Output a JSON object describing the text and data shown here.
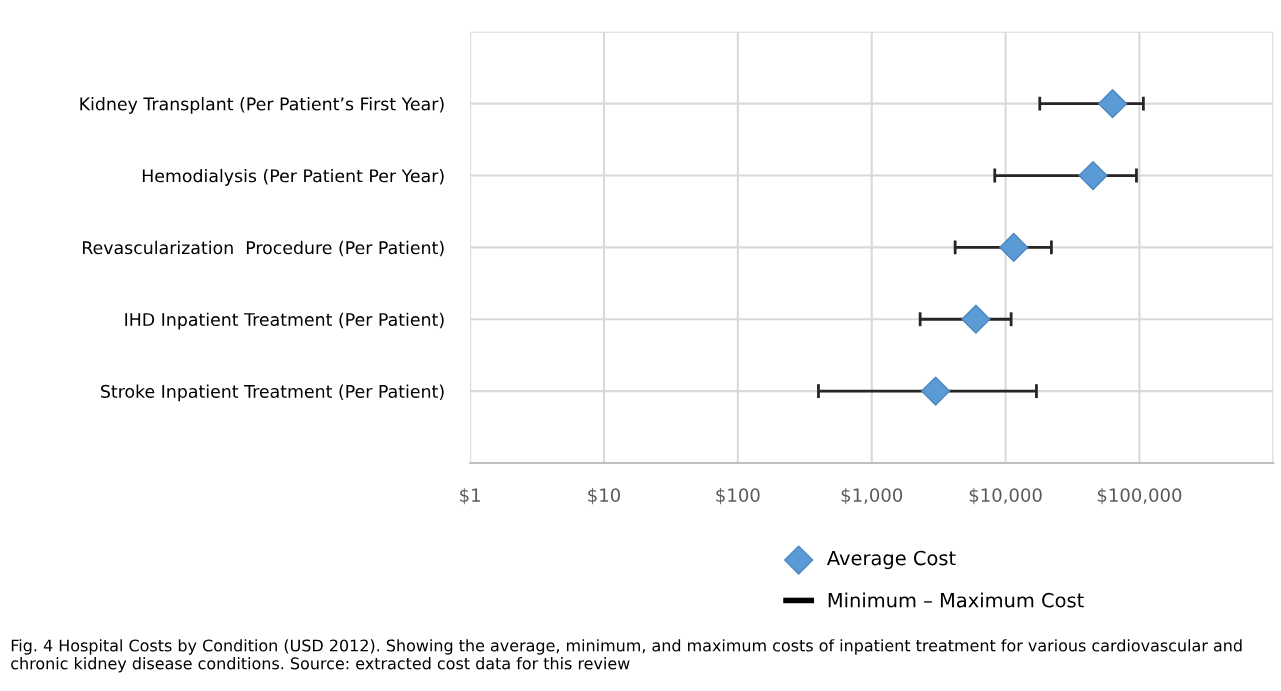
{
  "chart_data": {
    "type": "scatter",
    "orientation": "horizontal",
    "log": "x",
    "categories": [
      "Kidney Transplant (Per Patient’s First Year)",
      "Hemodialysis (Per Patient Per Year)",
      "Revascularization  Procedure (Per Patient)",
      "IHD Inpatient Treatment (Per Patient)",
      "Stroke Inpatient Treatment (Per Patient)"
    ],
    "series": [
      {
        "name": "Average Cost",
        "color": "#5b9bd5",
        "values": [
          63000,
          45000,
          11500,
          6000,
          3000
        ],
        "errors": [
          [
            18000,
            107000
          ],
          [
            8300,
            95000
          ],
          [
            4200,
            22000
          ],
          [
            2300,
            11000
          ],
          [
            400,
            17000
          ]
        ]
      }
    ],
    "xlim": [
      1,
      1000000
    ],
    "xticks": [
      {
        "value": 1,
        "label": "$1"
      },
      {
        "value": 10,
        "label": "$10"
      },
      {
        "value": 100,
        "label": "$100"
      },
      {
        "value": 1000,
        "label": "$1,000"
      },
      {
        "value": 10000,
        "label": "$10,000"
      },
      {
        "value": 100000,
        "label": "$100,000"
      },
      {
        "value": 1000000,
        "label": null
      }
    ],
    "marker": "diamond",
    "grid": true,
    "legend": "bottom",
    "annotations": [
      "Minimum – Maximum Cost",
      "Fig. 4 Hospital Costs by Condition (USD 2012). Showing the average, minimum, and maximum costs of inpatient treatment for various cardiovascular and chronic kidney disease conditions. Source: extracted cost data for this review"
    ]
  }
}
